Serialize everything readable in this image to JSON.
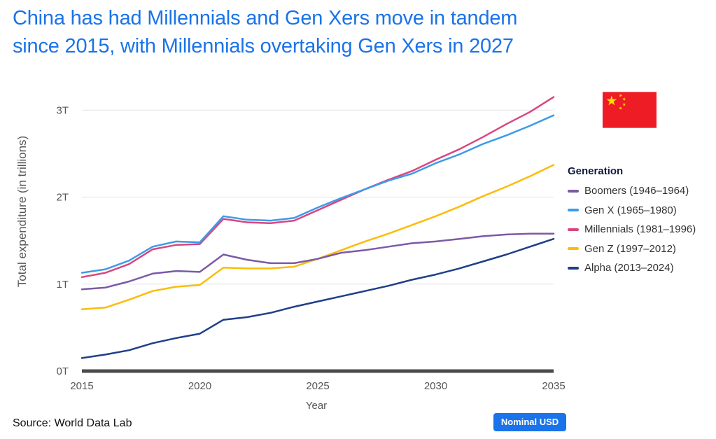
{
  "title": {
    "line1": "China has had Millennials and Gen Xers move in tandem",
    "line2": "since 2015, with Millennials overtaking Gen Xers in 2027"
  },
  "source": "Source: World Data Lab",
  "badge": "Nominal USD",
  "legend_title": "Generation",
  "flag_icon": "china-flag-icon",
  "colors": {
    "boomers": "#7b5aa6",
    "genx": "#3d9be9",
    "millennials": "#d94680",
    "genz": "#fbbc0a",
    "alpha": "#1f3f8a",
    "title": "#1a73e8",
    "flag_red": "#ee1c25",
    "flag_star": "#ffde00"
  },
  "chart_data": {
    "type": "line",
    "title": "China has had Millennials and Gen Xers move in tandem since 2015, with Millennials overtaking Gen Xers in 2027",
    "xlabel": "Year",
    "ylabel": "Total expenditure (in trillions)",
    "xlim": [
      2015,
      2035
    ],
    "ylim": [
      0,
      3.3
    ],
    "x_ticks": [
      2015,
      2020,
      2025,
      2030,
      2035
    ],
    "x_tick_labels": [
      "2015",
      "2020",
      "2025",
      "2030",
      "2035"
    ],
    "y_ticks": [
      0,
      1,
      2,
      3
    ],
    "y_tick_labels": [
      "0T",
      "1T",
      "2T",
      "3T"
    ],
    "legend_position": "right",
    "x": [
      2015,
      2016,
      2017,
      2018,
      2019,
      2020,
      2021,
      2022,
      2023,
      2024,
      2025,
      2026,
      2027,
      2028,
      2029,
      2030,
      2031,
      2032,
      2033,
      2034,
      2035
    ],
    "series": [
      {
        "key": "boomers",
        "name": "Boomers (1946–1964)",
        "values": [
          0.94,
          0.96,
          1.03,
          1.12,
          1.15,
          1.14,
          1.34,
          1.28,
          1.24,
          1.24,
          1.29,
          1.36,
          1.39,
          1.43,
          1.47,
          1.49,
          1.52,
          1.55,
          1.57,
          1.58,
          1.58
        ]
      },
      {
        "key": "genx",
        "name": "Gen X (1965–1980)",
        "values": [
          1.13,
          1.17,
          1.27,
          1.43,
          1.49,
          1.48,
          1.78,
          1.74,
          1.73,
          1.76,
          1.88,
          1.99,
          2.09,
          2.19,
          2.27,
          2.39,
          2.49,
          2.61,
          2.71,
          2.82,
          2.94
        ]
      },
      {
        "key": "millennials",
        "name": "Millennials (1981–1996)",
        "values": [
          1.08,
          1.13,
          1.23,
          1.4,
          1.45,
          1.46,
          1.75,
          1.71,
          1.7,
          1.73,
          1.85,
          1.97,
          2.09,
          2.2,
          2.3,
          2.43,
          2.55,
          2.69,
          2.84,
          2.98,
          3.15
        ]
      },
      {
        "key": "genz",
        "name": "Gen Z (1997–2012)",
        "values": [
          0.71,
          0.73,
          0.82,
          0.92,
          0.97,
          0.99,
          1.19,
          1.18,
          1.18,
          1.2,
          1.29,
          1.39,
          1.49,
          1.58,
          1.68,
          1.78,
          1.89,
          2.01,
          2.12,
          2.24,
          2.37
        ]
      },
      {
        "key": "alpha",
        "name": "Alpha (2013–2024)",
        "values": [
          0.15,
          0.19,
          0.24,
          0.32,
          0.38,
          0.43,
          0.59,
          0.62,
          0.67,
          0.74,
          0.8,
          0.86,
          0.92,
          0.98,
          1.05,
          1.11,
          1.18,
          1.26,
          1.34,
          1.43,
          1.52
        ]
      }
    ]
  }
}
